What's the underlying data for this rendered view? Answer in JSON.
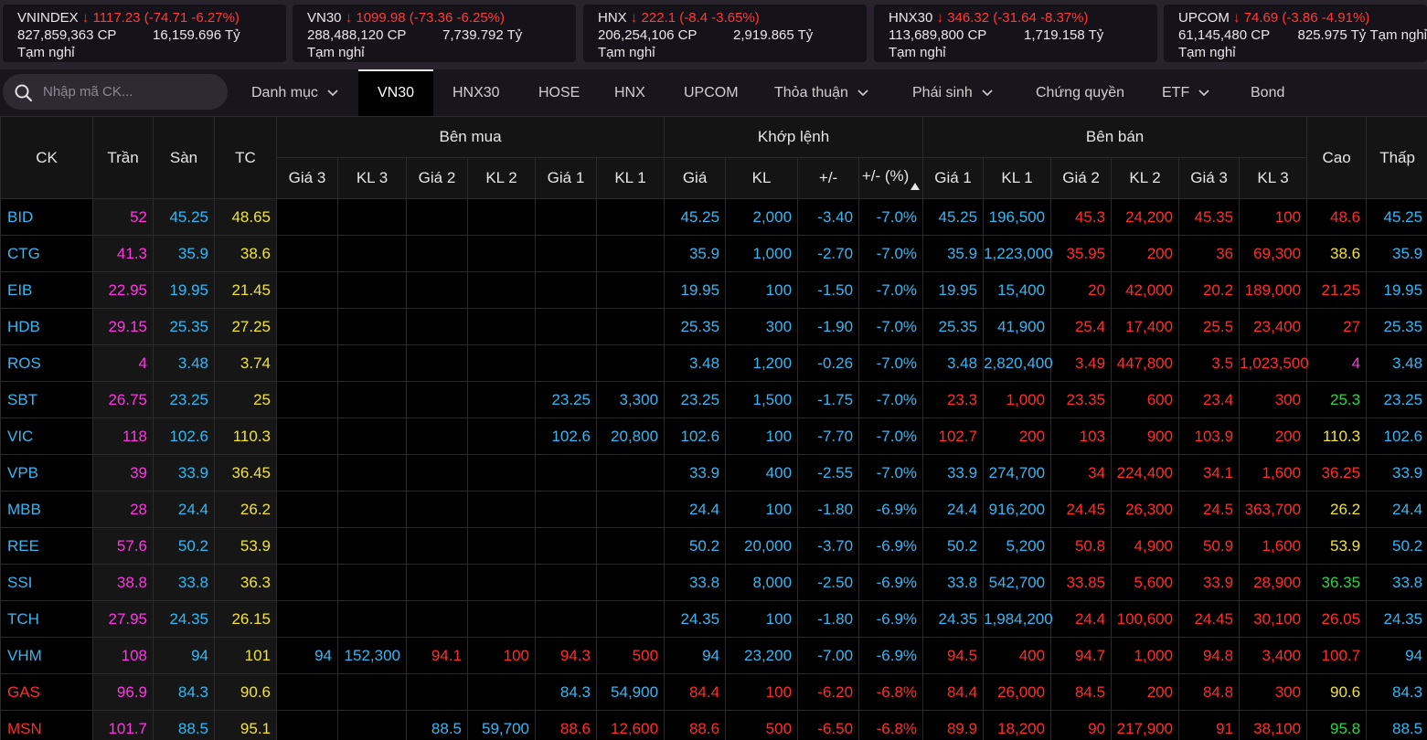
{
  "indices": [
    {
      "name": "VNINDEX",
      "value": "1117.23",
      "change": "(-74.71 -6.27%)",
      "volume": "827,859,363 CP",
      "turnover": "16,159.696 Tỷ",
      "status": "Tạm nghỉ"
    },
    {
      "name": "VN30",
      "value": "1099.98",
      "change": "(-73.36 -6.25%)",
      "volume": "288,488,120 CP",
      "turnover": "7,739.792 Tỷ",
      "status": "Tạm nghỉ"
    },
    {
      "name": "HNX",
      "value": "222.1",
      "change": "(-8.4 -3.65%)",
      "volume": "206,254,106 CP",
      "turnover": "2,919.865 Tỷ",
      "status": "Tạm nghỉ"
    },
    {
      "name": "HNX30",
      "value": "346.32",
      "change": "(-31.64 -8.37%)",
      "volume": "113,689,800 CP",
      "turnover": "1,719.158 Tỷ",
      "status": "Tạm nghỉ"
    },
    {
      "name": "UPCOM",
      "value": "74.69",
      "change": "(-3.86 -4.91%)",
      "volume": "61,145,480 CP",
      "turnover": "825.975 Tỷ",
      "status": "Tạm nghỉ"
    }
  ],
  "search": {
    "placeholder": "Nhập mã CK..."
  },
  "tabs": [
    {
      "label": "Danh mục",
      "dropdown": true
    },
    {
      "label": "VN30",
      "active": true
    },
    {
      "label": "HNX30"
    },
    {
      "label": "HOSE"
    },
    {
      "label": "HNX"
    },
    {
      "label": "UPCOM"
    },
    {
      "label": "Thỏa thuận",
      "dropdown": true
    },
    {
      "label": "Phái sinh",
      "dropdown": true
    },
    {
      "label": "Chứng quyền"
    },
    {
      "label": "ETF",
      "dropdown": true
    },
    {
      "label": "Bond"
    }
  ],
  "table": {
    "headers": {
      "ck": "CK",
      "ceiling": "Trần",
      "floor": "Sàn",
      "ref": "TC",
      "bid_group": "Bên mua",
      "match_group": "Khớp lệnh",
      "ask_group": "Bên bán",
      "high": "Cao",
      "low": "Thấp",
      "sub": [
        "Giá 3",
        "KL 3",
        "Giá 2",
        "KL 2",
        "Giá 1",
        "KL 1",
        "Giá",
        "KL",
        "+/-",
        "+/- (%)",
        "Giá 1",
        "KL 1",
        "Giá 2",
        "KL 2",
        "Giá 3",
        "KL 3"
      ]
    },
    "rows": [
      {
        "sym": "BID",
        "ceil": "52",
        "floor": "45.25",
        "ref": "48.65",
        "b3": "",
        "bv3": "",
        "b2": "",
        "bv2": "",
        "b1": "",
        "bv1": "",
        "price": "45.25",
        "vol": "2,000",
        "chg": "-3.40",
        "pct": "-7.0%",
        "a1": "45.25",
        "av1": "196,500",
        "a2": "45.3",
        "av2": "24,200",
        "a3": "45.35",
        "av3": "100",
        "high": "48.6",
        "low": "45.25",
        "c": {
          "sym": "c-floor",
          "b3": "",
          "b2": "",
          "b1": "",
          "price": "c-floor",
          "a1": "c-floor",
          "a2": "c-down",
          "a3": "c-down",
          "high": "c-down",
          "low": "c-floor"
        }
      },
      {
        "sym": "CTG",
        "ceil": "41.3",
        "floor": "35.9",
        "ref": "38.6",
        "b3": "",
        "bv3": "",
        "b2": "",
        "bv2": "",
        "b1": "",
        "bv1": "",
        "price": "35.9",
        "vol": "1,000",
        "chg": "-2.70",
        "pct": "-7.0%",
        "a1": "35.9",
        "av1": "1,223,000",
        "a2": "35.95",
        "av2": "200",
        "a3": "36",
        "av3": "69,300",
        "high": "38.6",
        "low": "35.9",
        "c": {
          "sym": "c-floor",
          "b3": "",
          "b2": "",
          "b1": "",
          "price": "c-floor",
          "a1": "c-floor",
          "a2": "c-down",
          "a3": "c-down",
          "high": "c-ref",
          "low": "c-floor"
        }
      },
      {
        "sym": "EIB",
        "ceil": "22.95",
        "floor": "19.95",
        "ref": "21.45",
        "b3": "",
        "bv3": "",
        "b2": "",
        "bv2": "",
        "b1": "",
        "bv1": "",
        "price": "19.95",
        "vol": "100",
        "chg": "-1.50",
        "pct": "-7.0%",
        "a1": "19.95",
        "av1": "15,400",
        "a2": "20",
        "av2": "42,000",
        "a3": "20.2",
        "av3": "189,000",
        "high": "21.25",
        "low": "19.95",
        "c": {
          "sym": "c-floor",
          "b3": "",
          "b2": "",
          "b1": "",
          "price": "c-floor",
          "a1": "c-floor",
          "a2": "c-down",
          "a3": "c-down",
          "high": "c-down",
          "low": "c-floor"
        }
      },
      {
        "sym": "HDB",
        "ceil": "29.15",
        "floor": "25.35",
        "ref": "27.25",
        "b3": "",
        "bv3": "",
        "b2": "",
        "bv2": "",
        "b1": "",
        "bv1": "",
        "price": "25.35",
        "vol": "300",
        "chg": "-1.90",
        "pct": "-7.0%",
        "a1": "25.35",
        "av1": "41,900",
        "a2": "25.4",
        "av2": "17,400",
        "a3": "25.5",
        "av3": "23,400",
        "high": "27",
        "low": "25.35",
        "c": {
          "sym": "c-floor",
          "b3": "",
          "b2": "",
          "b1": "",
          "price": "c-floor",
          "a1": "c-floor",
          "a2": "c-down",
          "a3": "c-down",
          "high": "c-down",
          "low": "c-floor"
        }
      },
      {
        "sym": "ROS",
        "ceil": "4",
        "floor": "3.48",
        "ref": "3.74",
        "b3": "",
        "bv3": "",
        "b2": "",
        "bv2": "",
        "b1": "",
        "bv1": "",
        "price": "3.48",
        "vol": "1,200",
        "chg": "-0.26",
        "pct": "-7.0%",
        "a1": "3.48",
        "av1": "2,820,400",
        "a2": "3.49",
        "av2": "447,800",
        "a3": "3.5",
        "av3": "1,023,500",
        "high": "4",
        "low": "3.48",
        "c": {
          "sym": "c-floor",
          "b3": "",
          "b2": "",
          "b1": "",
          "price": "c-floor",
          "a1": "c-floor",
          "a2": "c-down",
          "a3": "c-down",
          "high": "c-ceil",
          "low": "c-floor"
        }
      },
      {
        "sym": "SBT",
        "ceil": "26.75",
        "floor": "23.25",
        "ref": "25",
        "b3": "",
        "bv3": "",
        "b2": "",
        "bv2": "",
        "b1": "23.25",
        "bv1": "3,300",
        "price": "23.25",
        "vol": "1,500",
        "chg": "-1.75",
        "pct": "-7.0%",
        "a1": "23.3",
        "av1": "1,000",
        "a2": "23.35",
        "av2": "600",
        "a3": "23.4",
        "av3": "300",
        "high": "25.3",
        "low": "23.25",
        "c": {
          "sym": "c-floor",
          "b3": "",
          "b2": "",
          "b1": "c-floor",
          "price": "c-floor",
          "a1": "c-down",
          "a2": "c-down",
          "a3": "c-down",
          "high": "c-up",
          "low": "c-floor"
        }
      },
      {
        "sym": "VIC",
        "ceil": "118",
        "floor": "102.6",
        "ref": "110.3",
        "b3": "",
        "bv3": "",
        "b2": "",
        "bv2": "",
        "b1": "102.6",
        "bv1": "20,800",
        "price": "102.6",
        "vol": "100",
        "chg": "-7.70",
        "pct": "-7.0%",
        "a1": "102.7",
        "av1": "200",
        "a2": "103",
        "av2": "900",
        "a3": "103.9",
        "av3": "200",
        "high": "110.3",
        "low": "102.6",
        "c": {
          "sym": "c-floor",
          "b3": "",
          "b2": "",
          "b1": "c-floor",
          "price": "c-floor",
          "a1": "c-down",
          "a2": "c-down",
          "a3": "c-down",
          "high": "c-ref",
          "low": "c-floor"
        }
      },
      {
        "sym": "VPB",
        "ceil": "39",
        "floor": "33.9",
        "ref": "36.45",
        "b3": "",
        "bv3": "",
        "b2": "",
        "bv2": "",
        "b1": "",
        "bv1": "",
        "price": "33.9",
        "vol": "400",
        "chg": "-2.55",
        "pct": "-7.0%",
        "a1": "33.9",
        "av1": "274,700",
        "a2": "34",
        "av2": "224,400",
        "a3": "34.1",
        "av3": "1,600",
        "high": "36.25",
        "low": "33.9",
        "c": {
          "sym": "c-floor",
          "b3": "",
          "b2": "",
          "b1": "",
          "price": "c-floor",
          "a1": "c-floor",
          "a2": "c-down",
          "a3": "c-down",
          "high": "c-down",
          "low": "c-floor"
        }
      },
      {
        "sym": "MBB",
        "ceil": "28",
        "floor": "24.4",
        "ref": "26.2",
        "b3": "",
        "bv3": "",
        "b2": "",
        "bv2": "",
        "b1": "",
        "bv1": "",
        "price": "24.4",
        "vol": "100",
        "chg": "-1.80",
        "pct": "-6.9%",
        "a1": "24.4",
        "av1": "916,200",
        "a2": "24.45",
        "av2": "26,300",
        "a3": "24.5",
        "av3": "363,700",
        "high": "26.2",
        "low": "24.4",
        "c": {
          "sym": "c-floor",
          "b3": "",
          "b2": "",
          "b1": "",
          "price": "c-floor",
          "a1": "c-floor",
          "a2": "c-down",
          "a3": "c-down",
          "high": "c-ref",
          "low": "c-floor"
        }
      },
      {
        "sym": "REE",
        "ceil": "57.6",
        "floor": "50.2",
        "ref": "53.9",
        "b3": "",
        "bv3": "",
        "b2": "",
        "bv2": "",
        "b1": "",
        "bv1": "",
        "price": "50.2",
        "vol": "20,000",
        "chg": "-3.70",
        "pct": "-6.9%",
        "a1": "50.2",
        "av1": "5,200",
        "a2": "50.8",
        "av2": "4,900",
        "a3": "50.9",
        "av3": "1,600",
        "high": "53.9",
        "low": "50.2",
        "c": {
          "sym": "c-floor",
          "b3": "",
          "b2": "",
          "b1": "",
          "price": "c-floor",
          "a1": "c-floor",
          "a2": "c-down",
          "a3": "c-down",
          "high": "c-ref",
          "low": "c-floor"
        }
      },
      {
        "sym": "SSI",
        "ceil": "38.8",
        "floor": "33.8",
        "ref": "36.3",
        "b3": "",
        "bv3": "",
        "b2": "",
        "bv2": "",
        "b1": "",
        "bv1": "",
        "price": "33.8",
        "vol": "8,000",
        "chg": "-2.50",
        "pct": "-6.9%",
        "a1": "33.8",
        "av1": "542,700",
        "a2": "33.85",
        "av2": "5,600",
        "a3": "33.9",
        "av3": "28,900",
        "high": "36.35",
        "low": "33.8",
        "c": {
          "sym": "c-floor",
          "b3": "",
          "b2": "",
          "b1": "",
          "price": "c-floor",
          "a1": "c-floor",
          "a2": "c-down",
          "a3": "c-down",
          "high": "c-up",
          "low": "c-floor"
        }
      },
      {
        "sym": "TCH",
        "ceil": "27.95",
        "floor": "24.35",
        "ref": "26.15",
        "b3": "",
        "bv3": "",
        "b2": "",
        "bv2": "",
        "b1": "",
        "bv1": "",
        "price": "24.35",
        "vol": "100",
        "chg": "-1.80",
        "pct": "-6.9%",
        "a1": "24.35",
        "av1": "1,984,200",
        "a2": "24.4",
        "av2": "100,600",
        "a3": "24.45",
        "av3": "30,100",
        "high": "26.05",
        "low": "24.35",
        "c": {
          "sym": "c-floor",
          "b3": "",
          "b2": "",
          "b1": "",
          "price": "c-floor",
          "a1": "c-floor",
          "a2": "c-down",
          "a3": "c-down",
          "high": "c-down",
          "low": "c-floor"
        }
      },
      {
        "sym": "VHM",
        "ceil": "108",
        "floor": "94",
        "ref": "101",
        "b3": "94",
        "bv3": "152,300",
        "b2": "94.1",
        "bv2": "100",
        "b1": "94.3",
        "bv1": "500",
        "price": "94",
        "vol": "23,200",
        "chg": "-7.00",
        "pct": "-6.9%",
        "a1": "94.5",
        "av1": "400",
        "a2": "94.7",
        "av2": "1,000",
        "a3": "94.8",
        "av3": "3,400",
        "high": "100.7",
        "low": "94",
        "c": {
          "sym": "c-floor",
          "b3": "c-floor",
          "b2": "c-down",
          "b1": "c-down",
          "price": "c-floor",
          "a1": "c-down",
          "a2": "c-down",
          "a3": "c-down",
          "high": "c-down",
          "low": "c-floor"
        }
      },
      {
        "sym": "GAS",
        "ceil": "96.9",
        "floor": "84.3",
        "ref": "90.6",
        "b3": "",
        "bv3": "",
        "b2": "",
        "bv2": "",
        "b1": "84.3",
        "bv1": "54,900",
        "price": "84.4",
        "vol": "100",
        "chg": "-6.20",
        "pct": "-6.8%",
        "a1": "84.4",
        "av1": "26,000",
        "a2": "84.5",
        "av2": "200",
        "a3": "84.8",
        "av3": "300",
        "high": "90.6",
        "low": "84.3",
        "c": {
          "sym": "c-down",
          "b3": "",
          "b2": "",
          "b1": "c-floor",
          "price": "c-down",
          "a1": "c-down",
          "a2": "c-down",
          "a3": "c-down",
          "high": "c-ref",
          "low": "c-floor"
        }
      },
      {
        "sym": "MSN",
        "ceil": "101.7",
        "floor": "88.5",
        "ref": "95.1",
        "b3": "",
        "bv3": "",
        "b2": "88.5",
        "bv2": "59,700",
        "b1": "88.6",
        "bv1": "12,600",
        "price": "88.6",
        "vol": "500",
        "chg": "-6.50",
        "pct": "-6.8%",
        "a1": "89.9",
        "av1": "18,200",
        "a2": "90",
        "av2": "217,900",
        "a3": "91",
        "av3": "38,100",
        "high": "95.8",
        "low": "88.5",
        "c": {
          "sym": "c-down",
          "b3": "",
          "b2": "c-floor",
          "b1": "c-down",
          "price": "c-down",
          "a1": "c-down",
          "a2": "c-down",
          "a3": "c-down",
          "high": "c-up",
          "low": "c-floor"
        }
      }
    ]
  },
  "colors": {
    "ceiling": "#ff36e2",
    "floor": "#37b7f2",
    "reference": "#f0e23a",
    "down": "#ff2d2d",
    "up": "#2fd14a",
    "background": "#000000",
    "strip": "#27222b"
  }
}
